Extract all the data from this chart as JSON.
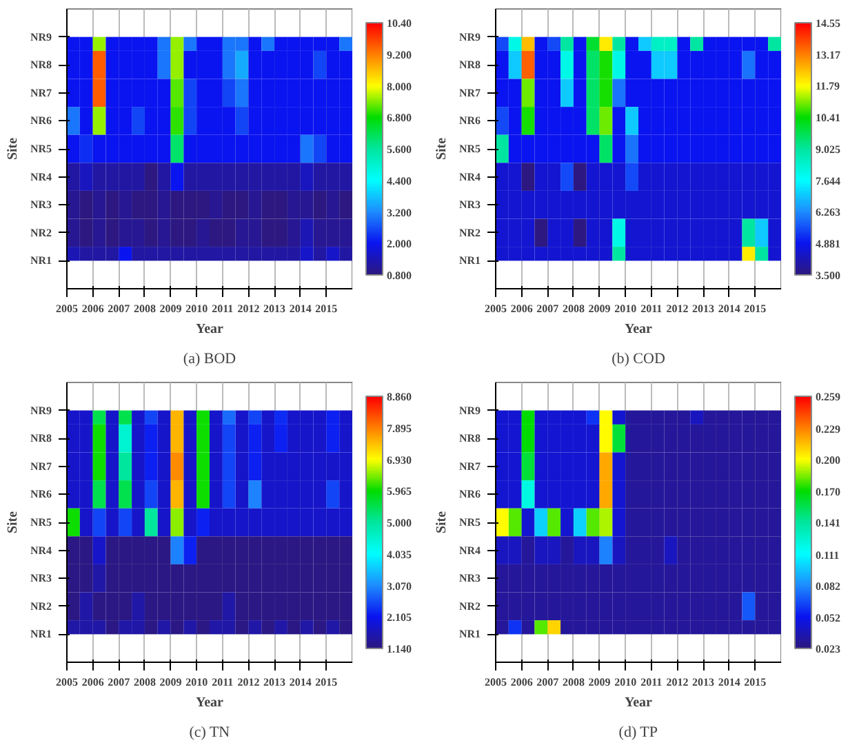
{
  "chart_data": [
    {
      "type": "heatmap",
      "title": "(a) BOD",
      "xlabel": "Year",
      "ylabel": "Site",
      "grid": "x",
      "x": [
        2005.25,
        2005.75,
        2006.25,
        2006.75,
        2007.25,
        2007.75,
        2008.25,
        2008.75,
        2009.25,
        2009.75,
        2010.25,
        2010.75,
        2011.25,
        2011.75,
        2012.25,
        2012.75,
        2013.25,
        2013.75,
        2014.25,
        2014.75,
        2015.25,
        2015.75
      ],
      "xlim": [
        2005,
        2016
      ],
      "xticks": [
        2005,
        2006,
        2007,
        2008,
        2009,
        2010,
        2011,
        2012,
        2013,
        2014,
        2015
      ],
      "y_categories": [
        "NR9",
        "NR8",
        "NR7",
        "NR6",
        "NR5",
        "NR4",
        "NR3",
        "NR2",
        "NR1"
      ],
      "clim": [
        0.8,
        10.4
      ],
      "cticks": [
        {
          "value": 0.8,
          "label": "0.800"
        },
        {
          "value": 2,
          "label": "2.000"
        },
        {
          "value": 3.2,
          "label": "3.200"
        },
        {
          "value": 4.4,
          "label": "4.400"
        },
        {
          "value": 5.6,
          "label": "5.600"
        },
        {
          "value": 6.8,
          "label": "6.800"
        },
        {
          "value": 8,
          "label": "8.000"
        },
        {
          "value": 9.2,
          "label": "9.200"
        },
        {
          "value": 10.4,
          "label": "10.40"
        }
      ],
      "cells": [
        [
          2,
          2,
          7.5,
          2,
          2,
          2,
          2,
          3,
          7.5,
          3,
          2,
          2,
          3,
          3,
          2,
          3,
          2,
          2,
          2,
          2,
          2,
          3
        ],
        [
          2,
          2,
          9.5,
          2,
          2,
          2,
          2,
          3,
          7.5,
          2,
          2,
          2,
          3,
          3.5,
          2,
          2,
          2,
          2,
          2,
          2.5,
          2,
          2
        ],
        [
          2,
          2,
          9.5,
          2,
          2,
          2,
          2,
          2,
          7.2,
          2.5,
          2,
          2,
          2.5,
          3,
          2,
          2,
          2,
          2,
          2,
          2,
          2,
          2
        ],
        [
          3,
          2,
          7.5,
          2,
          2,
          2.5,
          2,
          2,
          7,
          2.5,
          2,
          2,
          2,
          2.5,
          2,
          2,
          2,
          2,
          2,
          2,
          2,
          2
        ],
        [
          2,
          2.3,
          2,
          2,
          2,
          2,
          2,
          2,
          6,
          2,
          2,
          2,
          2,
          2,
          2,
          2,
          2,
          2,
          3,
          2.5,
          2,
          2
        ],
        [
          1.2,
          1.5,
          1.2,
          1.2,
          1.2,
          1.2,
          0.8,
          1.2,
          2,
          1.2,
          1.2,
          1.2,
          1.2,
          1.2,
          1.2,
          1.2,
          1.2,
          1.2,
          1.5,
          1.2,
          1.2,
          1.2
        ],
        [
          1.0,
          0.8,
          1.0,
          0.8,
          1.0,
          0.8,
          0.8,
          1.0,
          0.8,
          0.8,
          0.8,
          1.0,
          0.8,
          0.8,
          1.0,
          0.8,
          0.8,
          1.0,
          1.0,
          0.8,
          1.0,
          0.8
        ],
        [
          1.0,
          0.8,
          1.0,
          0.8,
          1.0,
          1.0,
          0.8,
          1.0,
          0.8,
          0.8,
          1.0,
          0.8,
          0.8,
          1.0,
          1.0,
          0.8,
          0.8,
          1.0,
          1.4,
          1.0,
          1.0,
          1.0
        ],
        [
          1.4,
          1.2,
          1.2,
          1.2,
          2,
          1.2,
          1.2,
          1.2,
          1.2,
          1.2,
          1.2,
          1.2,
          1.2,
          1.2,
          1.2,
          1.2,
          1.2,
          1.2,
          1.6,
          1.2,
          1.6,
          1.2
        ]
      ]
    },
    {
      "type": "heatmap",
      "title": "(b) COD",
      "xlabel": "Year",
      "ylabel": "Site",
      "grid": "x",
      "x": [
        2005.25,
        2005.75,
        2006.25,
        2006.75,
        2007.25,
        2007.75,
        2008.25,
        2008.75,
        2009.25,
        2009.75,
        2010.25,
        2010.75,
        2011.25,
        2011.75,
        2012.25,
        2012.75,
        2013.25,
        2013.75,
        2014.25,
        2014.75,
        2015.25,
        2015.75
      ],
      "xlim": [
        2005,
        2016
      ],
      "xticks": [
        2005,
        2006,
        2007,
        2008,
        2009,
        2010,
        2011,
        2012,
        2013,
        2014,
        2015
      ],
      "y_categories": [
        "NR9",
        "NR8",
        "NR7",
        "NR6",
        "NR5",
        "NR4",
        "NR3",
        "NR2",
        "NR1"
      ],
      "clim": [
        3.5,
        14.55
      ],
      "cticks": [
        {
          "value": 3.5,
          "label": "3.500"
        },
        4.881,
        6.263,
        7.644,
        9.025,
        10.41,
        11.79,
        13.17,
        14.55
      ],
      "cells": [
        [
          5.5,
          8,
          12.5,
          4.9,
          5.5,
          9,
          4.9,
          10,
          12,
          9,
          4.9,
          7,
          8.5,
          8.5,
          4.9,
          9,
          4.9,
          4.9,
          4.9,
          4.9,
          4.9,
          9
        ],
        [
          4.9,
          7,
          13.5,
          4.9,
          4.9,
          8,
          4.9,
          9.5,
          10.5,
          8,
          4.9,
          4.9,
          7,
          7,
          4.9,
          4.9,
          4.9,
          4.9,
          4.9,
          6,
          4.9,
          4.9
        ],
        [
          4.9,
          4.9,
          11,
          4.9,
          4.9,
          7,
          4.9,
          9.5,
          10.5,
          6,
          4.9,
          4.9,
          4.9,
          4.9,
          4.9,
          4.9,
          4.9,
          4.9,
          4.9,
          4.9,
          4.9,
          4.9
        ],
        [
          5.5,
          4.9,
          10.5,
          4.9,
          4.9,
          4.9,
          4.9,
          9.5,
          11,
          4.9,
          7,
          4.9,
          4.9,
          4.9,
          4.9,
          4.9,
          4.9,
          4.9,
          4.9,
          4.9,
          4.9,
          4.9
        ],
        [
          9,
          4.9,
          4.9,
          4.9,
          4.9,
          4.9,
          4.9,
          4.9,
          9.5,
          4.9,
          6,
          4.9,
          4.9,
          4.9,
          4.9,
          4.9,
          4.9,
          4.9,
          4.9,
          4.9,
          4.9,
          4.9
        ],
        [
          4.5,
          4.5,
          3.5,
          4.5,
          4.5,
          5.5,
          3.5,
          4.5,
          4.5,
          4.5,
          5.5,
          4.5,
          4.5,
          4.5,
          4.5,
          4.5,
          4.5,
          4.5,
          4.5,
          4.5,
          4.5,
          4.5
        ],
        [
          4.5,
          4.5,
          4.5,
          4.5,
          4.5,
          4.5,
          4.5,
          4.5,
          4.5,
          4.5,
          4.5,
          4.5,
          4.5,
          4.5,
          4.5,
          4.5,
          4.5,
          4.5,
          4.5,
          4.5,
          4.5,
          4.5
        ],
        [
          4.5,
          4.5,
          4.5,
          3.5,
          4.5,
          4.5,
          3.5,
          4.5,
          4.5,
          8,
          4.5,
          4.5,
          4.5,
          4.5,
          4.5,
          4.5,
          4.5,
          4.5,
          4.5,
          9,
          7,
          4.5
        ],
        [
          4.5,
          4.5,
          4.5,
          4.5,
          4.5,
          4.5,
          4.5,
          4.5,
          4.5,
          9,
          4.5,
          4.5,
          4.5,
          4.5,
          4.5,
          4.5,
          4.5,
          4.5,
          4.5,
          12,
          9,
          4.5
        ]
      ]
    },
    {
      "type": "heatmap",
      "title": "(c) TN",
      "xlabel": "Year",
      "ylabel": "Site",
      "grid": "x",
      "x": [
        2005.25,
        2005.75,
        2006.25,
        2006.75,
        2007.25,
        2007.75,
        2008.25,
        2008.75,
        2009.25,
        2009.75,
        2010.25,
        2010.75,
        2011.25,
        2011.75,
        2012.25,
        2012.75,
        2013.25,
        2013.75,
        2014.25,
        2014.75,
        2015.25,
        2015.75
      ],
      "xlim": [
        2005,
        2016
      ],
      "xticks": [
        2005,
        2006,
        2007,
        2008,
        2009,
        2010,
        2011,
        2012,
        2013,
        2014,
        2015
      ],
      "y_categories": [
        "NR9",
        "NR8",
        "NR7",
        "NR6",
        "NR5",
        "NR4",
        "NR3",
        "NR2",
        "NR1"
      ],
      "clim": [
        1.14,
        8.86
      ],
      "cticks": [
        {
          "value": 1.14,
          "label": "1.140"
        },
        2.105,
        {
          "value": 3.07,
          "label": "3.070"
        },
        4.035,
        {
          "value": 5,
          "label": "5.000"
        },
        5.965,
        {
          "value": 6.93,
          "label": "6.930"
        },
        7.895,
        {
          "value": 8.86,
          "label": "8.860"
        }
      ],
      "cells": [
        [
          1.8,
          1.8,
          5.5,
          1.8,
          5.5,
          1.8,
          2.5,
          1.8,
          7.5,
          1.8,
          6,
          1.8,
          2.8,
          1.8,
          2.5,
          1.8,
          2.3,
          1.8,
          1.8,
          1.8,
          2.2,
          1.8
        ],
        [
          1.8,
          1.8,
          6,
          1.8,
          4.5,
          1.8,
          2.2,
          1.8,
          7.5,
          1.8,
          6,
          1.8,
          2.5,
          1.8,
          2.2,
          1.8,
          2.2,
          1.8,
          1.8,
          1.8,
          2.2,
          1.8
        ],
        [
          1.8,
          1.8,
          6,
          1.8,
          5,
          1.8,
          2.2,
          1.8,
          7.8,
          1.8,
          6,
          1.8,
          2.5,
          1.8,
          2.2,
          1.8,
          1.8,
          1.8,
          1.8,
          1.8,
          1.8,
          1.8
        ],
        [
          1.8,
          1.8,
          5.5,
          1.8,
          5.5,
          1.8,
          2.5,
          1.8,
          7.5,
          1.8,
          6,
          1.8,
          2.5,
          1.8,
          3,
          1.8,
          1.8,
          1.8,
          1.8,
          1.8,
          2.5,
          1.8
        ],
        [
          6,
          1.8,
          2.5,
          1.8,
          2.5,
          1.8,
          5,
          1.8,
          6.5,
          1.8,
          2.2,
          1.8,
          1.8,
          1.8,
          1.8,
          1.8,
          1.8,
          1.8,
          1.8,
          1.8,
          1.8,
          1.8
        ],
        [
          1.2,
          1.2,
          1.8,
          1.2,
          1.2,
          1.2,
          1.2,
          1.2,
          3,
          2.2,
          1.2,
          1.2,
          1.2,
          1.2,
          1.2,
          1.2,
          1.2,
          1.2,
          1.2,
          1.2,
          1.2,
          1.2
        ],
        [
          1.2,
          1.2,
          1.5,
          1.2,
          1.2,
          1.2,
          1.2,
          1.2,
          1.2,
          1.2,
          1.2,
          1.2,
          1.2,
          1.2,
          1.2,
          1.2,
          1.2,
          1.2,
          1.2,
          1.2,
          1.2,
          1.2
        ],
        [
          1.2,
          1.5,
          1.2,
          1.2,
          1.2,
          1.5,
          1.2,
          1.2,
          1.2,
          1.2,
          1.2,
          1.2,
          1.5,
          1.2,
          1.2,
          1.2,
          1.2,
          1.2,
          1.2,
          1.2,
          1.2,
          1.2
        ],
        [
          1.5,
          1.5,
          1.5,
          1.2,
          1.5,
          1.5,
          1.2,
          1.5,
          1.2,
          1.5,
          1.2,
          1.5,
          1.5,
          1.2,
          1.5,
          1.2,
          1.5,
          1.2,
          1.5,
          1.2,
          1.5,
          1.2
        ]
      ]
    },
    {
      "type": "heatmap",
      "title": "(d) TP",
      "xlabel": "Year",
      "ylabel": "Site",
      "grid": "x",
      "x": [
        2005.25,
        2005.75,
        2006.25,
        2006.75,
        2007.25,
        2007.75,
        2008.25,
        2008.75,
        2009.25,
        2009.75,
        2010.25,
        2010.75,
        2011.25,
        2011.75,
        2012.25,
        2012.75,
        2013.25,
        2013.75,
        2014.25,
        2014.75,
        2015.25,
        2015.75
      ],
      "xlim": [
        2005,
        2016
      ],
      "xticks": [
        2005,
        2006,
        2007,
        2008,
        2009,
        2010,
        2011,
        2012,
        2013,
        2014,
        2015
      ],
      "y_categories": [
        "NR9",
        "NR8",
        "NR7",
        "NR6",
        "NR5",
        "NR4",
        "NR3",
        "NR2",
        "NR1"
      ],
      "clim": [
        0.023,
        0.259
      ],
      "cticks": [
        0.023,
        0.052,
        0.082,
        0.111,
        0.141,
        {
          "value": 0.17,
          "label": "0.170"
        },
        {
          "value": 0.2,
          "label": "0.200"
        },
        0.229,
        0.259
      ],
      "cells": [
        [
          0.045,
          0.045,
          0.17,
          0.045,
          0.045,
          0.045,
          0.045,
          0.06,
          0.2,
          0.045,
          0.03,
          0.03,
          0.03,
          0.03,
          0.03,
          0.04,
          0.03,
          0.03,
          0.03,
          0.03,
          0.03,
          0.03
        ],
        [
          0.045,
          0.045,
          0.17,
          0.045,
          0.045,
          0.045,
          0.045,
          0.045,
          0.2,
          0.16,
          0.03,
          0.03,
          0.03,
          0.03,
          0.03,
          0.03,
          0.03,
          0.03,
          0.03,
          0.03,
          0.03,
          0.03
        ],
        [
          0.045,
          0.045,
          0.16,
          0.045,
          0.045,
          0.045,
          0.045,
          0.045,
          0.22,
          0.045,
          0.03,
          0.03,
          0.03,
          0.03,
          0.03,
          0.03,
          0.03,
          0.03,
          0.03,
          0.03,
          0.03,
          0.03
        ],
        [
          0.045,
          0.045,
          0.12,
          0.045,
          0.045,
          0.045,
          0.045,
          0.045,
          0.22,
          0.045,
          0.03,
          0.03,
          0.03,
          0.03,
          0.03,
          0.03,
          0.03,
          0.03,
          0.03,
          0.03,
          0.03,
          0.03
        ],
        [
          0.2,
          0.18,
          0.045,
          0.1,
          0.18,
          0.045,
          0.1,
          0.18,
          0.19,
          0.045,
          0.03,
          0.03,
          0.03,
          0.03,
          0.03,
          0.03,
          0.03,
          0.03,
          0.03,
          0.03,
          0.03,
          0.03
        ],
        [
          0.04,
          0.04,
          0.03,
          0.04,
          0.04,
          0.03,
          0.04,
          0.04,
          0.08,
          0.04,
          0.03,
          0.03,
          0.03,
          0.04,
          0.03,
          0.03,
          0.03,
          0.03,
          0.03,
          0.03,
          0.03,
          0.03
        ],
        [
          0.03,
          0.03,
          0.03,
          0.03,
          0.03,
          0.03,
          0.03,
          0.03,
          0.03,
          0.03,
          0.03,
          0.03,
          0.03,
          0.03,
          0.03,
          0.03,
          0.03,
          0.03,
          0.03,
          0.03,
          0.03,
          0.03
        ],
        [
          0.03,
          0.03,
          0.03,
          0.03,
          0.03,
          0.03,
          0.03,
          0.03,
          0.03,
          0.03,
          0.03,
          0.03,
          0.03,
          0.03,
          0.03,
          0.03,
          0.03,
          0.03,
          0.03,
          0.07,
          0.03,
          0.03
        ],
        [
          0.03,
          0.06,
          0.03,
          0.18,
          0.21,
          0.03,
          0.03,
          0.03,
          0.03,
          0.03,
          0.03,
          0.03,
          0.03,
          0.03,
          0.03,
          0.03,
          0.03,
          0.03,
          0.03,
          0.03,
          0.03,
          0.03
        ]
      ]
    }
  ]
}
